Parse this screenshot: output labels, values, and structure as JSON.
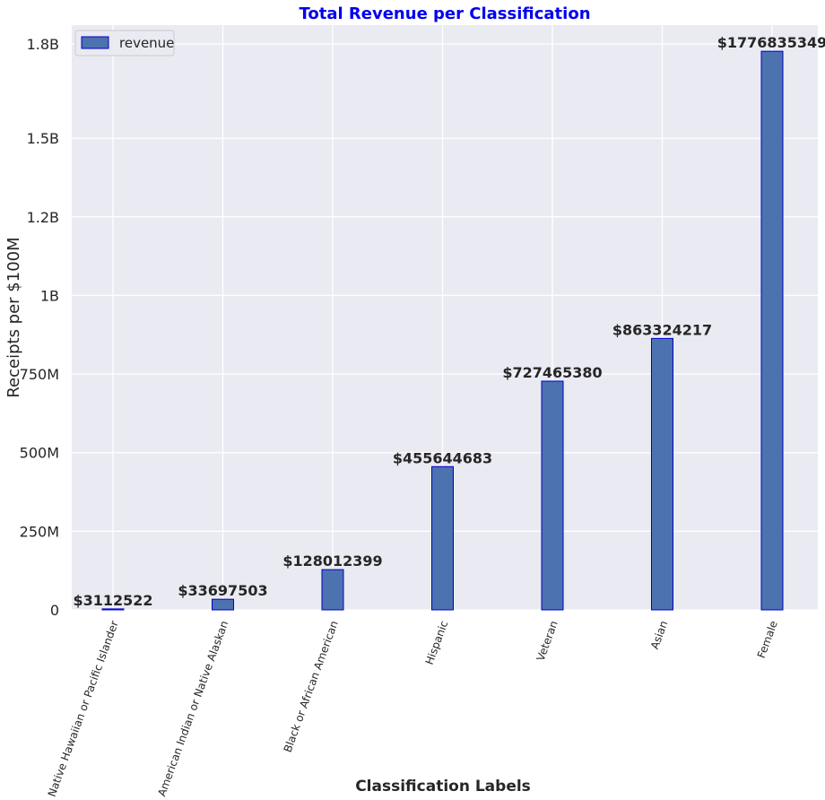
{
  "chart_data": {
    "type": "bar",
    "title": "Total Revenue per Classification",
    "xlabel": "Classification Labels",
    "ylabel": "Receipts per $100M",
    "categories": [
      "Native Hawaiian or Pacific Islander",
      "American Indian or Native Alaskan",
      "Black or African American",
      "Hispanic",
      "Veteran",
      "Asian",
      "Female"
    ],
    "series": [
      {
        "name": "revenue",
        "values": [
          3112522,
          33697503,
          128012399,
          455644683,
          727465380,
          863324217,
          1776835349
        ]
      }
    ],
    "data_labels": [
      "$3112522",
      "$33697503",
      "$128012399",
      "$455644683",
      "$727465380",
      "$863324217",
      "$1776835349"
    ],
    "ylim": [
      0,
      1860000000
    ],
    "yticks": [
      0,
      250000000,
      500000000,
      750000000,
      1000000000,
      1250000000,
      1500000000,
      1800000000
    ],
    "ytick_labels": [
      "0",
      "250M",
      "500M",
      "750M",
      "1B",
      "1.2B",
      "1.5B",
      "1.8B"
    ],
    "grid": true,
    "legend": {
      "position": "top-left",
      "label": "revenue"
    },
    "colors": {
      "bar_fill": "#4c72b0",
      "bar_edge": "#0000cc",
      "title": "#0000ee",
      "plot_bg": "#eaeaf2",
      "grid": "#ffffff",
      "text": "#262626"
    }
  }
}
